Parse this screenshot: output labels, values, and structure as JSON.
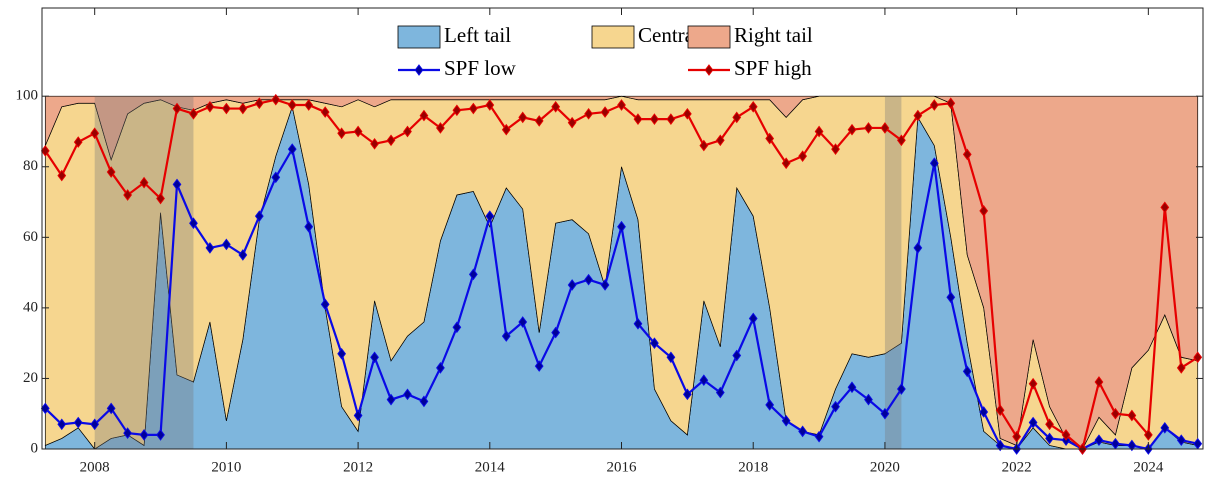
{
  "chart_data": {
    "type": "area",
    "legend": "upper center",
    "xlim": [
      2007.2,
      2024.83
    ],
    "xticks": [
      2008,
      2010,
      2012,
      2014,
      2016,
      2018,
      2020,
      2022,
      2024
    ],
    "ylim": [
      0,
      125
    ],
    "yticks": [
      0,
      20,
      40,
      60,
      80,
      100
    ],
    "shaded_periods": [
      [
        2008,
        2009.5
      ],
      [
        2020,
        2020.25
      ]
    ],
    "x": [
      2007.25,
      2007.5,
      2007.75,
      2008,
      2008.25,
      2008.5,
      2008.75,
      2009,
      2009.25,
      2009.5,
      2009.75,
      2010,
      2010.25,
      2010.5,
      2010.75,
      2011,
      2011.25,
      2011.5,
      2011.75,
      2012,
      2012.25,
      2012.5,
      2012.75,
      2013,
      2013.25,
      2013.5,
      2013.75,
      2014,
      2014.25,
      2014.5,
      2014.75,
      2015,
      2015.25,
      2015.5,
      2015.75,
      2016,
      2016.25,
      2016.5,
      2016.75,
      2017,
      2017.25,
      2017.5,
      2017.75,
      2018,
      2018.25,
      2018.5,
      2018.75,
      2019,
      2019.25,
      2019.5,
      2019.75,
      2020,
      2020.25,
      2020.5,
      2020.75,
      2021,
      2021.25,
      2021.5,
      2021.75,
      2022,
      2022.25,
      2022.5,
      2022.75,
      2023,
      2023.25,
      2023.5,
      2023.75,
      2024,
      2024.25,
      2024.5,
      2024.75
    ],
    "series": [
      {
        "name": "Left tail",
        "style": "area",
        "color": "#7eb6dd",
        "values": [
          1,
          3,
          6,
          0,
          3,
          4,
          1,
          67,
          21,
          19,
          36,
          8,
          31,
          65,
          83,
          97,
          75,
          40,
          12,
          5,
          42,
          25,
          32,
          36,
          59,
          72,
          73,
          63,
          74,
          68,
          33,
          64,
          65,
          61,
          46,
          80,
          65,
          17,
          8,
          4,
          42,
          29,
          74,
          66,
          40,
          8,
          5,
          4,
          17,
          27,
          26,
          27,
          30,
          94,
          86,
          60,
          30,
          5,
          1,
          0,
          6,
          1,
          0,
          0,
          2,
          1,
          1,
          0,
          6,
          2,
          1
        ]
      },
      {
        "name": "Central",
        "style": "area",
        "color": "#f6d68f",
        "values": [
          85,
          94,
          92,
          98,
          79,
          91,
          97,
          32,
          76,
          77,
          62,
          91,
          67,
          34,
          16,
          2,
          24,
          58,
          85,
          94,
          55,
          74,
          67,
          63,
          40,
          27,
          26,
          36,
          25,
          31,
          66,
          35,
          34,
          38,
          53,
          20,
          34,
          82,
          91,
          95,
          57,
          70,
          25,
          33,
          59,
          86,
          94,
          96,
          83,
          73,
          74,
          73,
          70,
          6,
          14,
          38,
          25,
          35,
          2,
          1,
          25,
          11,
          3,
          0,
          7,
          3,
          22,
          28,
          32,
          24,
          24
        ]
      },
      {
        "name": "Right tail",
        "style": "area",
        "color": "#eda88b",
        "values": [
          14,
          3,
          2,
          2,
          18,
          5,
          2,
          1,
          3,
          4,
          2,
          1,
          2,
          1,
          1,
          1,
          1,
          2,
          3,
          1,
          3,
          1,
          1,
          1,
          1,
          1,
          1,
          1,
          1,
          1,
          1,
          1,
          1,
          1,
          1,
          0,
          1,
          1,
          1,
          1,
          1,
          1,
          1,
          1,
          1,
          6,
          1,
          0,
          0,
          0,
          0,
          0,
          0,
          0,
          0,
          2,
          45,
          60,
          97,
          99,
          69,
          88,
          97,
          100,
          91,
          96,
          77,
          72,
          62,
          74,
          75
        ]
      },
      {
        "name": "SPF low",
        "style": "line",
        "color": "#0a0ae6",
        "marker_color": "#00009a",
        "values": [
          11.5,
          7,
          7.5,
          7,
          11.5,
          4.5,
          4,
          4,
          75,
          64,
          57,
          58,
          55,
          66,
          77,
          85,
          63,
          41,
          27,
          9.5,
          26,
          14,
          15.5,
          13.5,
          23,
          34.5,
          49.5,
          66,
          32,
          36,
          23.5,
          33,
          46.5,
          48,
          46.5,
          63,
          35.5,
          30,
          26,
          15.5,
          19.5,
          16,
          26.5,
          37,
          12.5,
          8,
          5,
          3.5,
          12,
          17.5,
          14,
          10,
          17,
          57,
          81,
          43,
          22,
          10.5,
          1,
          0,
          7.5,
          3,
          2.5,
          0,
          2.5,
          1.5,
          1,
          0,
          6,
          2.5,
          1.5
        ]
      },
      {
        "name": "SPF high",
        "style": "line",
        "color": "#e60000",
        "marker_color": "#9a0000",
        "values": [
          84.5,
          77.5,
          87,
          89.5,
          78.5,
          72,
          75.5,
          71,
          96.5,
          95,
          97,
          96.5,
          96.5,
          98,
          99,
          97.5,
          97.5,
          95.5,
          89.5,
          90,
          86.5,
          87.5,
          90,
          94.5,
          91,
          96,
          96.5,
          97.5,
          90.5,
          94,
          93,
          97,
          92.5,
          95,
          95.5,
          97.5,
          93.5,
          93.5,
          93.5,
          95,
          86,
          87.5,
          94,
          97,
          88,
          81,
          83,
          90,
          85,
          90.5,
          91,
          91,
          87.5,
          94.5,
          97.5,
          98,
          83.5,
          67.5,
          11,
          3.5,
          18.5,
          7,
          4,
          0,
          19,
          10,
          9.5,
          4,
          68.5,
          23,
          26
        ]
      }
    ]
  }
}
